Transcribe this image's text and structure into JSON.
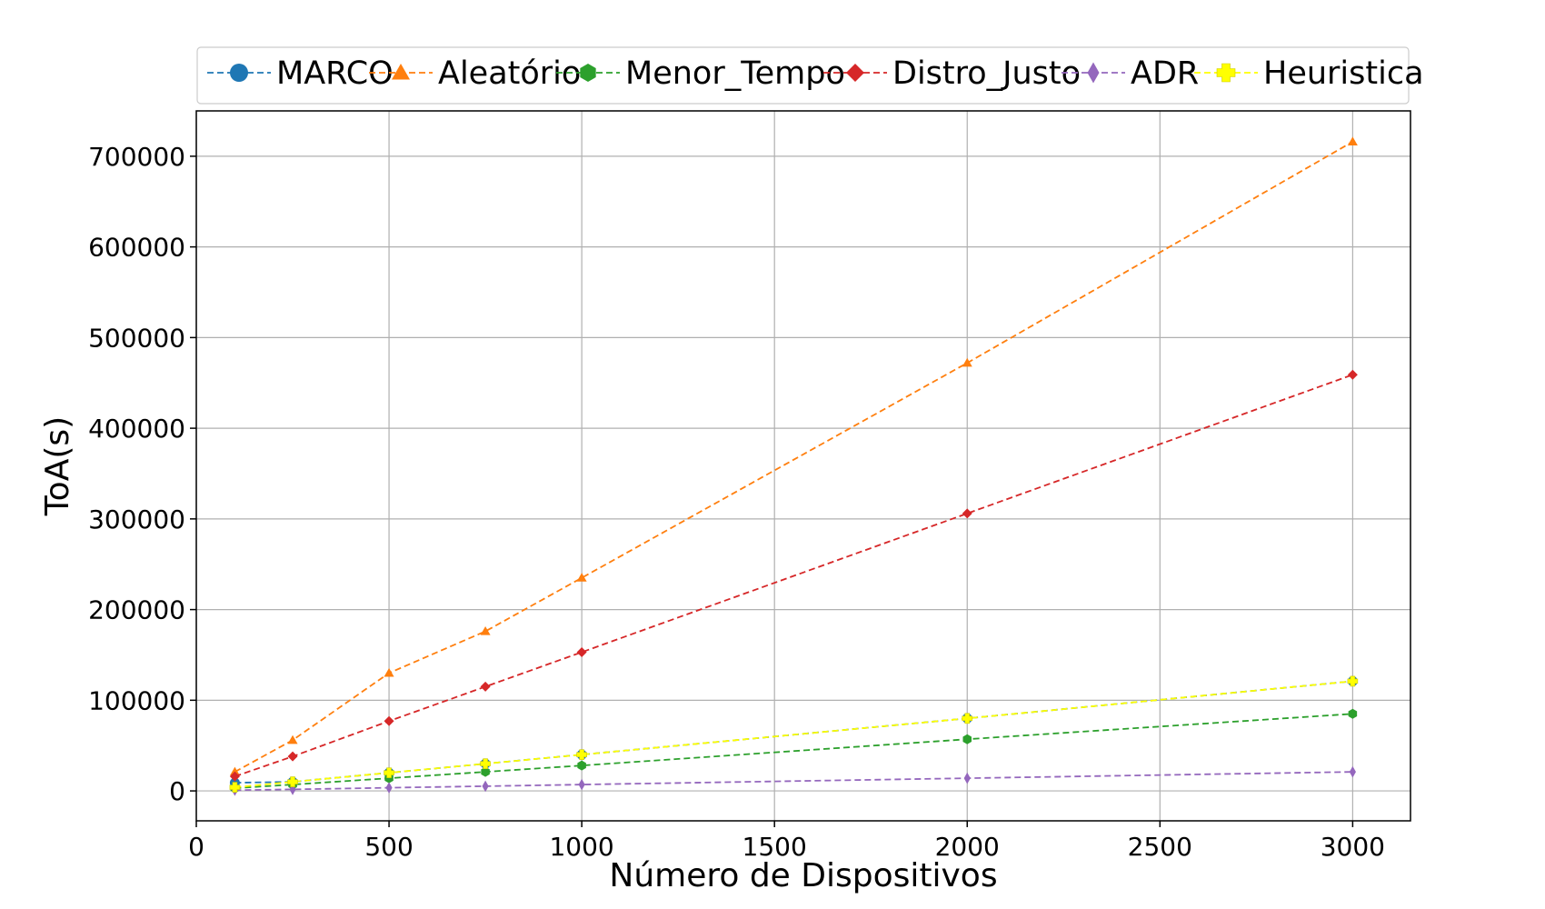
{
  "chart_data": {
    "type": "line",
    "title": "",
    "xlabel": "Número de Dispositivos",
    "ylabel": "ToA(s)",
    "xlim": [
      0,
      3150
    ],
    "ylim": [
      -33000,
      750000
    ],
    "xticks": [
      0,
      500,
      1000,
      1500,
      2000,
      2500,
      3000
    ],
    "yticks": [
      0,
      100000,
      200000,
      300000,
      400000,
      500000,
      600000,
      700000
    ],
    "grid": true,
    "legend_position": "top",
    "x": [
      100,
      250,
      500,
      750,
      1000,
      2000,
      3000
    ],
    "series": [
      {
        "name": "MARCO",
        "color": "#1f77b4",
        "marker": "circle",
        "values": [
          9000,
          10000,
          20000,
          30000,
          40000,
          80000,
          121000
        ]
      },
      {
        "name": "Aleatório",
        "color": "#ff7f0e",
        "marker": "triangle",
        "values": [
          21000,
          56000,
          130000,
          176000,
          235000,
          472000,
          716000
        ]
      },
      {
        "name": "Menor_Tempo",
        "color": "#2ca02c",
        "marker": "hexagon",
        "values": [
          3000,
          7000,
          14000,
          21000,
          28000,
          57000,
          85000
        ]
      },
      {
        "name": "Distro_Justo",
        "color": "#d62728",
        "marker": "diamond",
        "values": [
          16000,
          38000,
          77000,
          115000,
          153000,
          306000,
          459000
        ]
      },
      {
        "name": "ADR",
        "color": "#9467bd",
        "marker": "thin_diamond",
        "values": [
          800,
          1700,
          3500,
          5200,
          7000,
          14000,
          21000
        ]
      },
      {
        "name": "Heuristica",
        "color": "#ffff00",
        "marker": "plus",
        "values": [
          4000,
          10000,
          20000,
          30000,
          40000,
          80000,
          121000
        ]
      }
    ]
  }
}
